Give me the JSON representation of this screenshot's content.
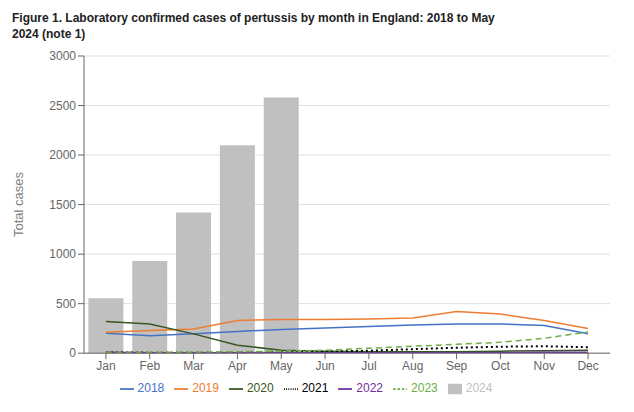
{
  "chart_data": {
    "type": "bar",
    "title": "Figure 1. Laboratory confirmed cases of pertussis by month in England: 2018 to May\n2024 (note 1)",
    "y_label": "Total cases",
    "categories": [
      "Jan",
      "Feb",
      "Mar",
      "Apr",
      "May",
      "Jun",
      "Jul",
      "Aug",
      "Sep",
      "Oct",
      "Nov",
      "Dec"
    ],
    "series": [
      {
        "name": "2024",
        "type": "bar",
        "color": "#c0c0c0",
        "values": [
          555,
          930,
          1420,
          2100,
          2580,
          null,
          null,
          null,
          null,
          null,
          null,
          null
        ]
      },
      {
        "name": "2018",
        "type": "line",
        "color": "#4472c4",
        "line_style": "solid",
        "values": [
          200,
          175,
          195,
          220,
          240,
          255,
          270,
          285,
          295,
          295,
          280,
          195
        ]
      },
      {
        "name": "2019",
        "type": "line",
        "color": "#ed7d31",
        "line_style": "solid",
        "values": [
          210,
          230,
          245,
          330,
          340,
          340,
          345,
          355,
          420,
          395,
          330,
          250
        ]
      },
      {
        "name": "2020",
        "type": "line",
        "color": "#375623",
        "line_style": "solid",
        "values": [
          320,
          295,
          195,
          80,
          30,
          20,
          15,
          15,
          15,
          20,
          25,
          30
        ]
      },
      {
        "name": "2021",
        "type": "line",
        "color": "#000000",
        "line_style": "dotted",
        "values": [
          10,
          5,
          5,
          5,
          10,
          15,
          25,
          40,
          55,
          65,
          70,
          60
        ]
      },
      {
        "name": "2022",
        "type": "line",
        "color": "#7030a0",
        "line_style": "solid",
        "values": [
          10,
          5,
          5,
          5,
          5,
          5,
          5,
          5,
          5,
          5,
          10,
          10
        ]
      },
      {
        "name": "2023",
        "type": "line",
        "color": "#70ad47",
        "line_style": "dashed",
        "values": [
          10,
          10,
          10,
          15,
          20,
          30,
          50,
          70,
          90,
          110,
          150,
          215
        ]
      }
    ],
    "ylim": [
      0,
      3000
    ],
    "yticks": [
      0,
      500,
      1000,
      1500,
      2000,
      2500,
      3000
    ],
    "grid": true,
    "legend": "bottom"
  }
}
